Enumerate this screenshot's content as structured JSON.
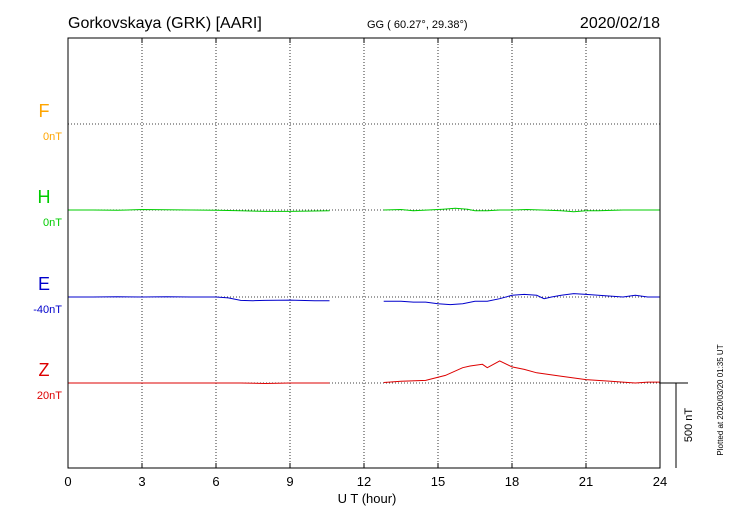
{
  "header": {
    "station": "Gorkovskaya (GRK)  [AARI]",
    "coords": "GG ( 60.27°,  29.38°)",
    "date": "2020/02/18"
  },
  "footer": {
    "plotted": "Plotted at 2020/03/20 01:35 UT"
  },
  "colors": {
    "F": "#ffa500",
    "H": "#00cc00",
    "E": "#0000cc",
    "Z": "#dd0000"
  },
  "chart_data": {
    "type": "line",
    "xlabel": "U T (hour)",
    "xlim": [
      0,
      24
    ],
    "xticks": [
      "0",
      "3",
      "6",
      "9",
      "12",
      "15",
      "18",
      "21",
      "24"
    ],
    "scale_label": "500 nT",
    "scale_nT": 500,
    "panel_span_nT": 500,
    "series": [
      {
        "name": "F",
        "offset_label": "0nT",
        "color": "#ffa500",
        "data": []
      },
      {
        "name": "H",
        "offset_label": "0nT",
        "color": "#00cc00",
        "data": [
          [
            0,
            0
          ],
          [
            1,
            0
          ],
          [
            2,
            -2
          ],
          [
            3,
            3
          ],
          [
            4,
            2
          ],
          [
            5,
            0
          ],
          [
            6,
            -2
          ],
          [
            7,
            -4
          ],
          [
            8,
            -8
          ],
          [
            9,
            -8
          ],
          [
            10,
            -6
          ],
          [
            10.6,
            -5
          ],
          null,
          [
            12.8,
            0
          ],
          [
            13.5,
            3
          ],
          [
            14,
            -5
          ],
          [
            14.6,
            0
          ],
          [
            15.2,
            5
          ],
          [
            15.7,
            10
          ],
          [
            16.2,
            5
          ],
          [
            16.5,
            -5
          ],
          [
            17,
            -5
          ],
          [
            17.5,
            0
          ],
          [
            18,
            0
          ],
          [
            18.6,
            3
          ],
          [
            19.2,
            0
          ],
          [
            20,
            -5
          ],
          [
            20.5,
            -10
          ],
          [
            21,
            -5
          ],
          [
            21.5,
            -5
          ],
          [
            22.5,
            0
          ],
          [
            23.5,
            0
          ],
          [
            24,
            0
          ]
        ]
      },
      {
        "name": "E",
        "offset_label": "-40nT",
        "color": "#0000cc",
        "data": [
          [
            0,
            0
          ],
          [
            1,
            0
          ],
          [
            2,
            2
          ],
          [
            3,
            0
          ],
          [
            4,
            2
          ],
          [
            5,
            0
          ],
          [
            6,
            0
          ],
          [
            6.5,
            -5
          ],
          [
            7,
            -20
          ],
          [
            7.5,
            -22
          ],
          [
            8,
            -20
          ],
          [
            9,
            -18
          ],
          [
            10,
            -22
          ],
          [
            10.6,
            -22
          ],
          null,
          [
            12.8,
            -25
          ],
          [
            13.5,
            -25
          ],
          [
            14,
            -30
          ],
          [
            14.5,
            -30
          ],
          [
            15,
            -40
          ],
          [
            15.5,
            -45
          ],
          [
            16,
            -40
          ],
          [
            16.5,
            -25
          ],
          [
            17,
            -25
          ],
          [
            17.5,
            -10
          ],
          [
            18,
            10
          ],
          [
            18.5,
            15
          ],
          [
            19,
            10
          ],
          [
            19.3,
            -10
          ],
          [
            19.6,
            0
          ],
          [
            20,
            10
          ],
          [
            20.5,
            20
          ],
          [
            21,
            15
          ],
          [
            21.5,
            10
          ],
          [
            22,
            5
          ],
          [
            22.5,
            0
          ],
          [
            23,
            10
          ],
          [
            23.5,
            0
          ],
          [
            24,
            0
          ]
        ]
      },
      {
        "name": "Z",
        "offset_label": "20nT",
        "color": "#dd0000",
        "data": [
          [
            0,
            0
          ],
          [
            2,
            0
          ],
          [
            4,
            0
          ],
          [
            6,
            0
          ],
          [
            7,
            0
          ],
          [
            8,
            -3
          ],
          [
            9,
            0
          ],
          [
            10,
            0
          ],
          [
            10.6,
            0
          ],
          null,
          [
            12.8,
            3
          ],
          [
            13.5,
            10
          ],
          [
            14.5,
            15
          ],
          [
            15.3,
            45
          ],
          [
            16,
            90
          ],
          [
            16.3,
            100
          ],
          [
            16.8,
            110
          ],
          [
            17,
            90
          ],
          [
            17.5,
            130
          ],
          [
            18,
            95
          ],
          [
            18.5,
            80
          ],
          [
            19,
            60
          ],
          [
            20,
            40
          ],
          [
            21,
            20
          ],
          [
            22,
            10
          ],
          [
            23,
            0
          ],
          [
            23.5,
            5
          ],
          [
            24,
            5
          ]
        ]
      }
    ]
  }
}
